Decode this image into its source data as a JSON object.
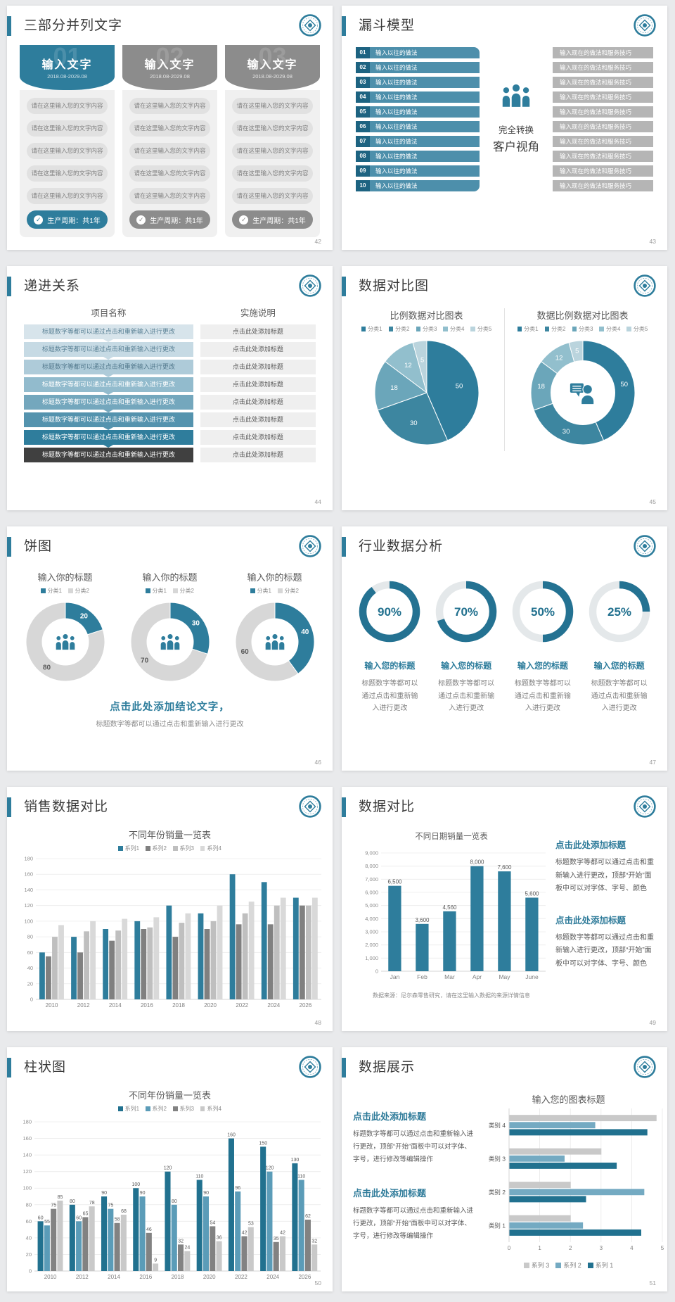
{
  "colors": {
    "accent": "#2e7d9c",
    "accent_dark": "#21718f",
    "teal_mid": "#5b9cb8",
    "gray_card": "#8c8c8c",
    "funnel_num_bg": "#1d6381",
    "funnel_left_bar": "#4d8fab",
    "funnel_right_bar": "#b5b5b5"
  },
  "slides": {
    "three_part": {
      "title": "三部分并列文字",
      "page_no": "42",
      "cards": [
        {
          "num": "01",
          "header": "输入文字",
          "date": "2018.08-2029.08",
          "color": "#2e7d9c",
          "items": [
            "请在这里输入您的文字内容",
            "请在这里输入您的文字内容",
            "请在这里输入您的文字内容",
            "请在这里输入您的文字内容",
            "请在这里输入您的文字内容"
          ],
          "footer": "生产周期：共1年"
        },
        {
          "num": "02",
          "header": "输入文字",
          "date": "2018.08-2029.08",
          "color": "#8c8c8c",
          "items": [
            "请在这里输入您的文字内容",
            "请在这里输入您的文字内容",
            "请在这里输入您的文字内容",
            "请在这里输入您的文字内容",
            "请在这里输入您的文字内容"
          ],
          "footer": "生产周期：共1年"
        },
        {
          "num": "03",
          "header": "输入文字",
          "date": "2018.08-2029.08",
          "color": "#8c8c8c",
          "items": [
            "请在这里输入您的文字内容",
            "请在这里输入您的文字内容",
            "请在这里输入您的文字内容",
            "请在这里输入您的文字内容",
            "请在这里输入您的文字内容"
          ],
          "footer": "生产周期：共1年"
        }
      ]
    },
    "funnel": {
      "title": "漏斗模型",
      "page_no": "43",
      "numbers": [
        "01",
        "02",
        "03",
        "04",
        "05",
        "06",
        "07",
        "08",
        "09",
        "10"
      ],
      "left_label": "输入以往的做法",
      "right_label": "输入现在的做法和服务技巧",
      "center_line1": "完全转换",
      "center_line2": "客户视角"
    },
    "progression": {
      "title": "递进关系",
      "page_no": "44",
      "header_left": "项目名称",
      "header_right": "实施说明",
      "row_left_text": "标题数字等都可以通过点击和重新输入进行更改",
      "row_right_text": "点击此处添加标题",
      "rows": [
        {
          "color": "#d7e4eb",
          "text_color": "#5b8296"
        },
        {
          "color": "#c6dae4",
          "text_color": "#5b8296"
        },
        {
          "color": "#aecbd9",
          "text_color": "#53798d"
        },
        {
          "color": "#92bbcd",
          "text_color": "#ffffff"
        },
        {
          "color": "#74a7bd",
          "text_color": "#ffffff"
        },
        {
          "color": "#5493ae",
          "text_color": "#ffffff"
        },
        {
          "color": "#2f7d9c",
          "text_color": "#ffffff"
        },
        {
          "color": "#404040",
          "text_color": "#ffffff"
        }
      ]
    },
    "data_compare_pies": {
      "title": "数据对比图",
      "page_no": "45"
    },
    "pie_slide": {
      "title": "饼图",
      "page_no": "46",
      "conclusion": "点击此处添加结论文字，",
      "conclusion_sub": "标题数字等都可以通过点击和重新输入进行更改"
    },
    "industry": {
      "title": "行业数据分析",
      "page_no": "47",
      "caption": "输入您的标题",
      "desc": "标题数字等都可以通过点击和重新输入进行更改"
    },
    "sales_compare": {
      "title": "销售数据对比",
      "page_no": "48"
    },
    "data_compare": {
      "title": "数据对比",
      "page_no": "49",
      "blocks": [
        {
          "heading": "点击此处添加标题",
          "body": "标题数字等都可以通过点击和重新输入进行更改，顶部“开始”面板中可以对字体、字号、颜色"
        },
        {
          "heading": "点击此处添加标题",
          "body": "标题数字等都可以通过点击和重新输入进行更改，顶部“开始”面板中可以对字体、字号、颜色"
        }
      ],
      "source": "数据来源：尼尔森零售研究，请在这里输入数据的来源详情信息"
    },
    "bar_slide": {
      "title": "柱状图",
      "page_no": "50"
    },
    "display_slide": {
      "title": "数据展示",
      "page_no": "51",
      "blocks": [
        {
          "heading": "点击此处添加标题",
          "body": "标题数字等都可以通过点击和重新输入进行更改，顶部“开始”面板中可以对字体、字号，进行修改等编辑操作"
        },
        {
          "heading": "点击此处添加标题",
          "body": "标题数字等都可以通过点击和重新输入进行更改，顶部“开始”面板中可以对字体、字号，进行修改等编辑操作"
        }
      ]
    }
  },
  "chart_data": [
    {
      "id": "pie-ratio",
      "type": "pie",
      "title": "比例数据对比图表",
      "legend": [
        "分类1",
        "分类2",
        "分类3",
        "分类4",
        "分类5"
      ],
      "values": [
        50,
        30,
        18,
        12,
        5
      ],
      "colors": [
        "#2e7d9c",
        "#3d86a0",
        "#6ba6ba",
        "#92bfcd",
        "#bad4dd"
      ],
      "legend_position": "top"
    },
    {
      "id": "donut-ratio",
      "type": "pie",
      "donut": true,
      "title": "数据比例数据对比图表",
      "legend": [
        "分类1",
        "分类2",
        "分类3",
        "分类4",
        "分类5"
      ],
      "values": [
        50,
        30,
        18,
        12,
        5
      ],
      "colors": [
        "#2e7d9c",
        "#3d86a0",
        "#6ba6ba",
        "#92bfcd",
        "#bad4dd"
      ],
      "center_icon": "person-chat-icon",
      "legend_position": "top"
    },
    {
      "id": "donut-20",
      "type": "pie",
      "donut": true,
      "title": "输入你的标题",
      "legend": [
        "分类1",
        "分类2"
      ],
      "values": [
        20,
        80
      ],
      "colors": [
        "#2e7d9c",
        "#d7d7d7"
      ],
      "label_colors": [
        "#ffffff",
        "#595959"
      ],
      "center_icon": "people-icon"
    },
    {
      "id": "donut-30",
      "type": "pie",
      "donut": true,
      "title": "输入你的标题",
      "legend": [
        "分类1",
        "分类2"
      ],
      "values": [
        30,
        70
      ],
      "colors": [
        "#2e7d9c",
        "#d7d7d7"
      ],
      "label_colors": [
        "#ffffff",
        "#595959"
      ],
      "center_icon": "people-icon"
    },
    {
      "id": "donut-40",
      "type": "pie",
      "donut": true,
      "title": "输入你的标题",
      "legend": [
        "分类1",
        "分类2"
      ],
      "values": [
        40,
        60
      ],
      "colors": [
        "#2e7d9c",
        "#d7d7d7"
      ],
      "label_colors": [
        "#ffffff",
        "#595959"
      ],
      "center_icon": "people-icon"
    },
    {
      "id": "ring-gauges",
      "type": "gauge",
      "values": [
        90,
        70,
        50,
        25
      ],
      "unit": "%",
      "fill_color": "#247292",
      "track_color": "#e4e8ea"
    },
    {
      "id": "year-sales",
      "type": "bar",
      "title": "不同年份销量一览表",
      "categories": [
        "2010",
        "2012",
        "2014",
        "2016",
        "2018",
        "2020",
        "2022",
        "2024",
        "2026"
      ],
      "series": [
        {
          "name": "系列1",
          "color": "#2e7d9c",
          "values": [
            60,
            80,
            90,
            100,
            120,
            110,
            160,
            150,
            130
          ]
        },
        {
          "name": "系列2",
          "color": "#808080",
          "values": [
            55,
            60,
            75,
            90,
            80,
            90,
            96,
            96,
            120
          ]
        },
        {
          "name": "系列3",
          "color": "#bfbfbf",
          "values": [
            80,
            87,
            88,
            92,
            98,
            100,
            110,
            120,
            120
          ]
        },
        {
          "name": "系列4",
          "color": "#d9d9d9",
          "values": [
            95,
            100,
            103,
            105,
            110,
            120,
            125,
            130,
            130
          ]
        }
      ],
      "ylim": [
        0,
        180
      ],
      "ystep": 20,
      "value_labels": false,
      "grid": true,
      "legend_position": "top"
    },
    {
      "id": "date-sales",
      "type": "bar",
      "title": "不同日期销量一览表",
      "categories": [
        "Jan",
        "Feb",
        "Mar",
        "Apr",
        "May",
        "June"
      ],
      "series": [
        {
          "name": "销量",
          "color": "#2e7d9c",
          "values": [
            6500,
            3600,
            4560,
            8000,
            7600,
            5600
          ]
        }
      ],
      "ylim": [
        0,
        9000
      ],
      "ystep": 1000,
      "value_labels": true,
      "comma": true,
      "grid": true
    },
    {
      "id": "year-sales-labeled",
      "type": "bar",
      "title": "不同年份销量一览表",
      "categories": [
        "2010",
        "2012",
        "2014",
        "2016",
        "2018",
        "2020",
        "2022",
        "2024",
        "2026"
      ],
      "series": [
        {
          "name": "系列1",
          "color": "#21718f",
          "values": [
            60,
            80,
            90,
            100,
            120,
            110,
            160,
            150,
            130
          ]
        },
        {
          "name": "系列2",
          "color": "#5b9cb8",
          "values": [
            55,
            60,
            75,
            90,
            80,
            90,
            96,
            120,
            110
          ]
        },
        {
          "name": "系列3",
          "color": "#828282",
          "values": [
            75,
            65,
            58,
            46,
            32,
            54,
            42,
            35,
            62
          ]
        },
        {
          "name": "系列4",
          "color": "#c9c9c9",
          "values": [
            85,
            78,
            68,
            9,
            24,
            36,
            53,
            42,
            32
          ]
        }
      ],
      "ylim": [
        0,
        180
      ],
      "ystep": 20,
      "value_labels": true,
      "grid": true,
      "legend_position": "top"
    },
    {
      "id": "category-compare",
      "type": "bar",
      "horizontal": true,
      "title": "输入您的图表标题",
      "categories": [
        "类别 1",
        "类别 2",
        "类别 3",
        "类别 4"
      ],
      "series": [
        {
          "name": "系列 3",
          "color": "#c9c9c9",
          "values": [
            2.0,
            2.0,
            3.0,
            4.8
          ]
        },
        {
          "name": "系列 2",
          "color": "#74aac2",
          "values": [
            2.4,
            4.4,
            1.8,
            2.8
          ]
        },
        {
          "name": "系列 1",
          "color": "#21718f",
          "values": [
            4.3,
            2.5,
            3.5,
            4.5
          ]
        }
      ],
      "xlim": [
        0,
        5
      ],
      "xstep": 1,
      "grid": true,
      "legend_position": "bottom"
    }
  ]
}
